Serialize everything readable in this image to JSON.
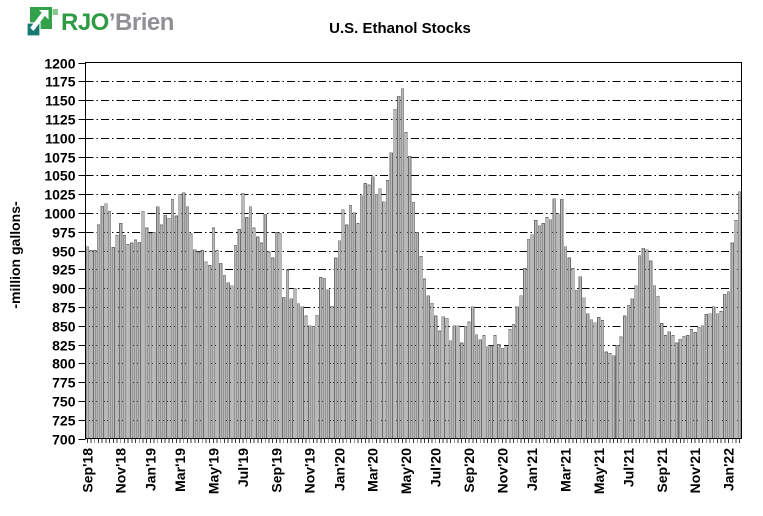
{
  "page": {
    "background": "#ffffff"
  },
  "logo": {
    "primary": "RJO",
    "secondary": "’Brien",
    "icon": "rjo-squares-arrow-logo",
    "colors": {
      "primary_text": "#2f9c45",
      "secondary_text": "#8f9194",
      "square_green": "#33a04a",
      "square_teal": "#167a70",
      "square_light": "#85ca8f",
      "arrow_white": "#ffffff"
    }
  },
  "chart_data": {
    "type": "bar",
    "title": "U.S. Ethanol Stocks",
    "ylabel": "-million  gallons-",
    "ylim": [
      700,
      1200
    ],
    "ytick_step": 25,
    "grid": {
      "on": true,
      "style": "dash-dot",
      "color": "#000000"
    },
    "legend": "none",
    "bar_fill": "#b9b9b9",
    "bar_stroke": "#6e6e6e",
    "frame_color": "#000000",
    "x_frequency": "weekly",
    "x_ticks": [
      {
        "label": "Sep'18",
        "index": 0
      },
      {
        "label": "Nov'18",
        "index": 9
      },
      {
        "label": "Jan'19",
        "index": 17
      },
      {
        "label": "Mar'19",
        "index": 25
      },
      {
        "label": "May'19",
        "index": 34
      },
      {
        "label": "Jul'19",
        "index": 42
      },
      {
        "label": "Sep'19",
        "index": 51
      },
      {
        "label": "Nov'19",
        "index": 60
      },
      {
        "label": "Jan'20",
        "index": 68
      },
      {
        "label": "Mar'20",
        "index": 77
      },
      {
        "label": "May'20",
        "index": 86
      },
      {
        "label": "Jul'20",
        "index": 94
      },
      {
        "label": "Sep'20",
        "index": 103
      },
      {
        "label": "Nov'20",
        "index": 112
      },
      {
        "label": "Jan'21",
        "index": 120
      },
      {
        "label": "Mar'21",
        "index": 129
      },
      {
        "label": "May'21",
        "index": 138
      },
      {
        "label": "Jul'21",
        "index": 146
      },
      {
        "label": "Sep'21",
        "index": 155
      },
      {
        "label": "Nov'21",
        "index": 164
      },
      {
        "label": "Jan'22",
        "index": 173
      }
    ],
    "values": [
      955,
      950,
      950,
      984,
      1009,
      1012,
      1002,
      954,
      970,
      986,
      970,
      958,
      960,
      964,
      961,
      1002,
      980,
      973,
      974,
      1008,
      984,
      997,
      993,
      1018,
      996,
      1025,
      1027,
      1008,
      972,
      951,
      948,
      950,
      935,
      930,
      980,
      950,
      933,
      917,
      907,
      903,
      957,
      978,
      1026,
      994,
      1008,
      980,
      968,
      960,
      998,
      948,
      940,
      974,
      973,
      888,
      924,
      886,
      900,
      879,
      875,
      863,
      850,
      849,
      864,
      914,
      913,
      898,
      876,
      940,
      963,
      1004,
      984,
      1010,
      1000,
      986,
      1023,
      1039,
      1037,
      1048,
      1025,
      1032,
      1015,
      1043,
      1080,
      1138,
      1155,
      1165,
      1107,
      1075,
      1014,
      974,
      942,
      912,
      890,
      880,
      863,
      843,
      862,
      860,
      830,
      850,
      850,
      827,
      849,
      855,
      875,
      838,
      831,
      837,
      822,
      823,
      837,
      825,
      820,
      822,
      845,
      852,
      875,
      890,
      926,
      965,
      971,
      990,
      983,
      986,
      994,
      991,
      1019,
      999,
      1018,
      955,
      940,
      926,
      897,
      915,
      887,
      866,
      858,
      854,
      861,
      857,
      815,
      813,
      810,
      824,
      835,
      863,
      877,
      886,
      903,
      943,
      953,
      951,
      936,
      903,
      889,
      853,
      837,
      842,
      837,
      827,
      832,
      836,
      837,
      845,
      841,
      848,
      850,
      865,
      866,
      875,
      866,
      869,
      892,
      895,
      960,
      990,
      1028
    ]
  }
}
